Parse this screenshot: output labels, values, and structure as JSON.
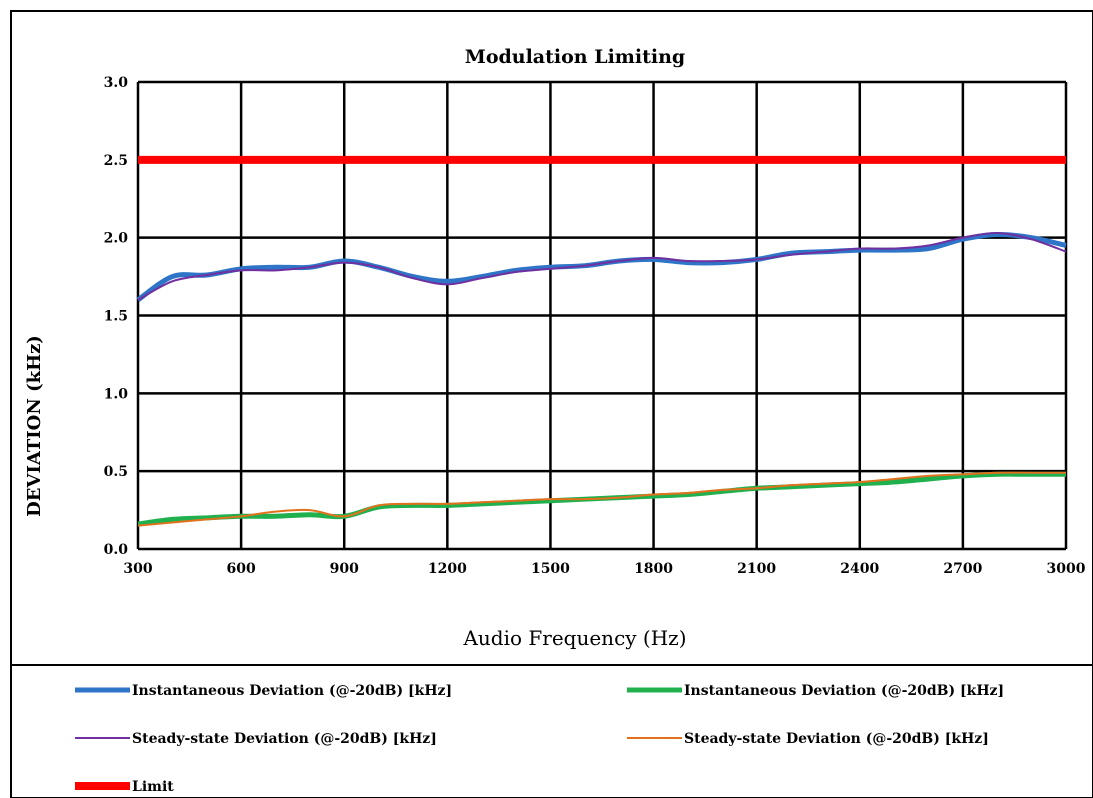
{
  "chart_data": {
    "type": "line",
    "title": "Modulation Limiting",
    "xlabel": "Audio Frequency (Hz)",
    "ylabel": "DEVIATION (kHz)",
    "xlim": [
      300,
      3000
    ],
    "ylim": [
      0,
      3.0
    ],
    "x_ticks": [
      300,
      600,
      900,
      1200,
      1500,
      1800,
      2100,
      2400,
      2700,
      3000
    ],
    "y_ticks": [
      0.0,
      0.5,
      1.0,
      1.5,
      2.0,
      2.5,
      3.0
    ],
    "y_tick_labels": [
      "0.0",
      "0.5",
      "1.0",
      "1.5",
      "2.0",
      "2.5",
      "3.0"
    ],
    "grid": true,
    "legend_placement": "bottom",
    "x": [
      300,
      400,
      500,
      600,
      700,
      800,
      900,
      1000,
      1100,
      1200,
      1300,
      1400,
      1500,
      1600,
      1700,
      1800,
      1900,
      2000,
      2100,
      2200,
      2300,
      2400,
      2500,
      2600,
      2700,
      2800,
      2900,
      3000
    ],
    "series": [
      {
        "name": "Instantaneous Deviation (@-20dB) [kHz]",
        "color": "#2e75c8",
        "width": 5,
        "values": [
          1.6,
          1.75,
          1.76,
          1.8,
          1.81,
          1.81,
          1.85,
          1.81,
          1.75,
          1.72,
          1.75,
          1.79,
          1.81,
          1.82,
          1.85,
          1.86,
          1.84,
          1.84,
          1.86,
          1.9,
          1.91,
          1.92,
          1.92,
          1.93,
          1.99,
          2.02,
          2.0,
          1.95
        ]
      },
      {
        "name": "Steady-state Deviation (@-20dB) [kHz]",
        "color": "#7030a0",
        "width": 2,
        "values": [
          1.6,
          1.72,
          1.76,
          1.79,
          1.79,
          1.81,
          1.84,
          1.81,
          1.74,
          1.7,
          1.74,
          1.78,
          1.8,
          1.82,
          1.85,
          1.87,
          1.85,
          1.85,
          1.86,
          1.89,
          1.91,
          1.93,
          1.93,
          1.95,
          2.0,
          2.03,
          1.99,
          1.91
        ]
      },
      {
        "name": "Instantaneous Deviation (@-20dB) [kHz]",
        "color": "#21b04e",
        "width": 5,
        "values": [
          0.16,
          0.19,
          0.2,
          0.21,
          0.21,
          0.22,
          0.21,
          0.27,
          0.28,
          0.28,
          0.29,
          0.3,
          0.31,
          0.32,
          0.33,
          0.34,
          0.35,
          0.37,
          0.39,
          0.4,
          0.41,
          0.42,
          0.43,
          0.45,
          0.47,
          0.48,
          0.48,
          0.48
        ]
      },
      {
        "name": "Steady-state Deviation (@-20dB) [kHz]",
        "color": "#e2711d",
        "width": 2,
        "values": [
          0.15,
          0.17,
          0.19,
          0.21,
          0.24,
          0.25,
          0.21,
          0.28,
          0.29,
          0.29,
          0.3,
          0.31,
          0.32,
          0.32,
          0.33,
          0.35,
          0.36,
          0.38,
          0.39,
          0.41,
          0.42,
          0.43,
          0.45,
          0.47,
          0.48,
          0.49,
          0.49,
          0.49
        ]
      },
      {
        "name": "Limit",
        "color": "#ff0000",
        "width": 8,
        "values": [
          2.5,
          2.5,
          2.5,
          2.5,
          2.5,
          2.5,
          2.5,
          2.5,
          2.5,
          2.5,
          2.5,
          2.5,
          2.5,
          2.5,
          2.5,
          2.5,
          2.5,
          2.5,
          2.5,
          2.5,
          2.5,
          2.5,
          2.5,
          2.5,
          2.5,
          2.5,
          2.5,
          2.5
        ]
      }
    ]
  },
  "legend": [
    {
      "label": "Instantaneous Deviation (@-20dB) [kHz]",
      "color": "#2e75c8",
      "width": 5
    },
    {
      "label": "Instantaneous Deviation (@-20dB) [kHz]",
      "color": "#21b04e",
      "width": 5
    },
    {
      "label": "Steady-state Deviation (@-20dB) [kHz]",
      "color": "#7030a0",
      "width": 2
    },
    {
      "label": "Steady-state Deviation (@-20dB) [kHz]",
      "color": "#e2711d",
      "width": 2
    },
    {
      "label": "Limit",
      "color": "#ff0000",
      "width": 8
    }
  ]
}
